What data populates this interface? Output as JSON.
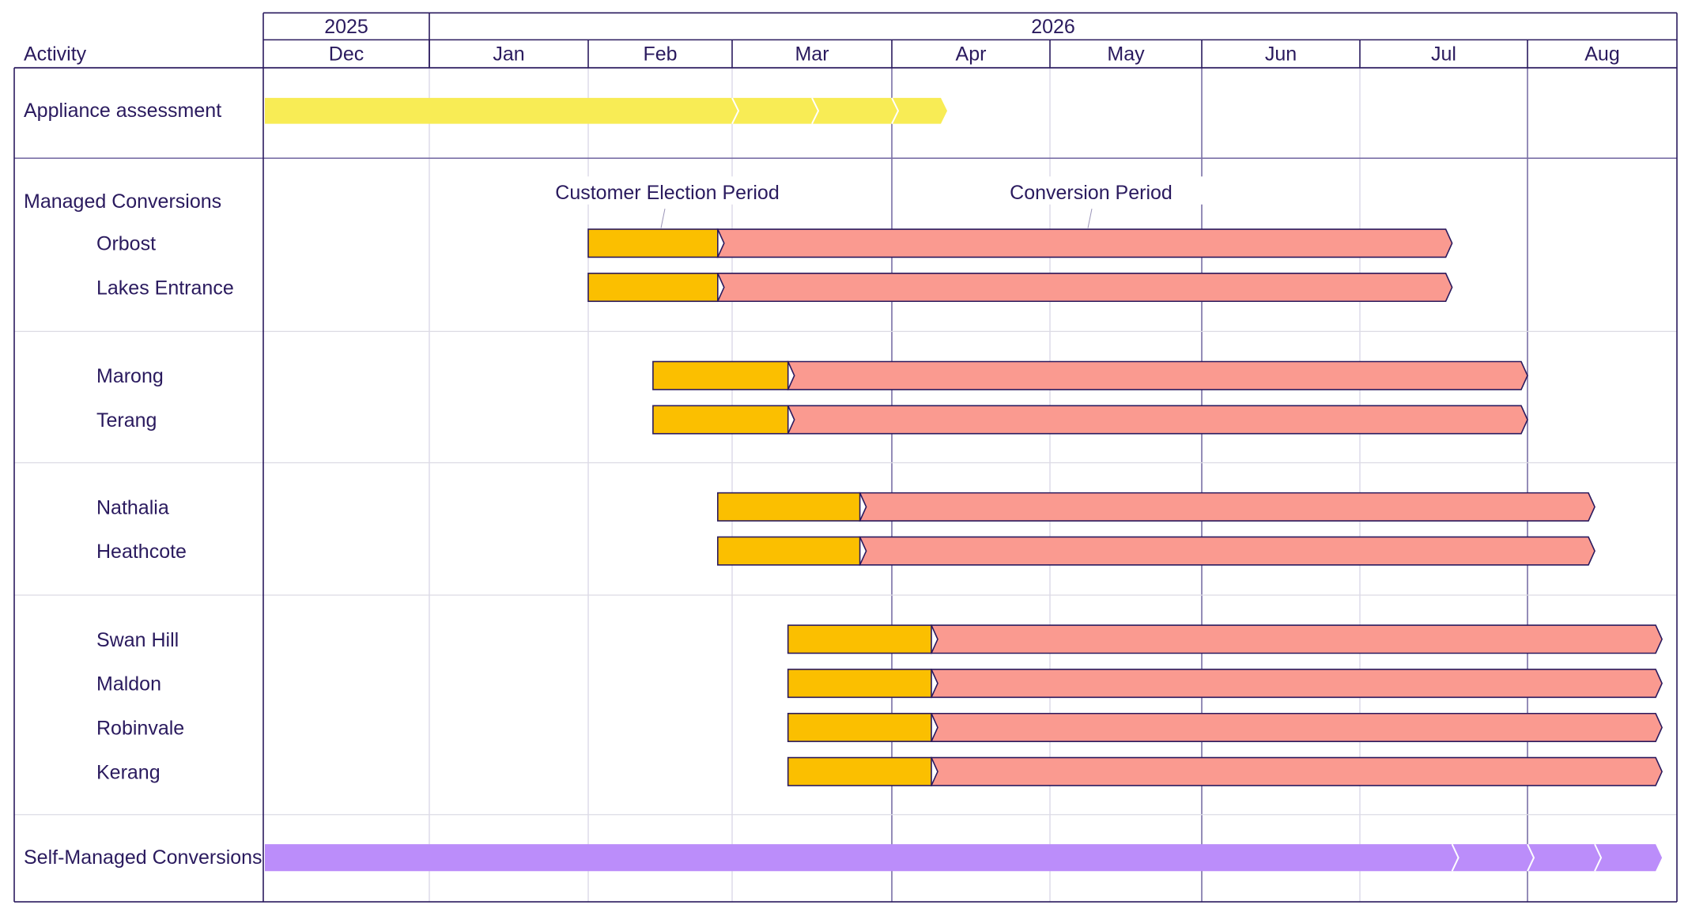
{
  "chart_data": {
    "type": "gantt",
    "column_header": "Activity",
    "years": [
      {
        "label": "2025",
        "months": 1
      },
      {
        "label": "2026",
        "months": 8
      }
    ],
    "months": [
      "Dec",
      "Jan",
      "Feb",
      "Mar",
      "Apr",
      "May",
      "Jun",
      "Jul",
      "Aug"
    ],
    "phases": {
      "election": {
        "label": "Customer Election Period",
        "color": "#fbbf00"
      },
      "conversion": {
        "label": "Conversion Period",
        "color": "#fa9a90"
      }
    },
    "colors": {
      "assessment": "#f8ec55",
      "self_managed": "#bb8dfa",
      "ink": "#2a1a5e"
    },
    "assessment": {
      "label": "Appliance assessment",
      "start": 0,
      "end": 4.35
    },
    "managed_heading": "Managed Conversions",
    "groups": [
      {
        "start": 2.0,
        "election_end": 2.9,
        "end": 7.55,
        "towns": [
          "Orbost",
          "Lakes Entrance"
        ]
      },
      {
        "start": 2.45,
        "election_end": 3.35,
        "end": 8.0,
        "towns": [
          "Marong",
          "Terang"
        ]
      },
      {
        "start": 2.9,
        "election_end": 3.8,
        "end": 8.45,
        "towns": [
          "Nathalia",
          "Heathcote"
        ]
      },
      {
        "start": 3.35,
        "election_end": 4.25,
        "end": 8.9,
        "towns": [
          "Swan Hill",
          "Maldon",
          "Robinvale",
          "Kerang"
        ]
      }
    ],
    "self_managed": {
      "label": "Self-Managed Conversions",
      "start": 0,
      "end": 8.9
    }
  }
}
